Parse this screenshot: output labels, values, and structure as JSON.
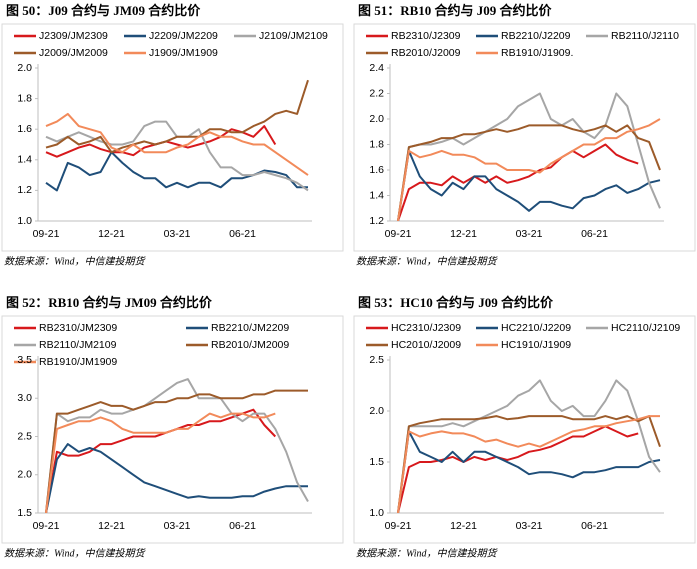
{
  "chart_data": [
    {
      "type": "line",
      "title": "图 50：J09 合约与 JM09 合约比价",
      "source": "数据来源：Wind，中信建投期货",
      "categories": [
        "09-21",
        null,
        null,
        null,
        null,
        null,
        "12-21",
        null,
        null,
        null,
        null,
        null,
        "03-21",
        null,
        null,
        null,
        null,
        null,
        "06-21",
        null,
        null,
        null,
        null,
        null,
        null
      ],
      "ylim": [
        1.0,
        2.0
      ],
      "yticks": [
        {
          "value": 1.0,
          "label": "1.0"
        },
        1.2,
        1.4,
        1.6,
        1.8,
        {
          "value": 2.0,
          "label": "2.0"
        }
      ],
      "series": [
        {
          "name": "J2309/JM2309",
          "color": "#d7191c",
          "values": [
            1.45,
            1.42,
            1.45,
            1.48,
            1.5,
            1.47,
            1.45,
            1.45,
            1.43,
            1.48,
            1.5,
            1.52,
            1.5,
            1.48,
            1.5,
            1.52,
            1.55,
            1.6,
            1.58,
            1.55,
            1.62,
            1.5,
            null,
            null,
            null
          ]
        },
        {
          "name": "J2209/JM2209",
          "color": "#1f4e79",
          "values": [
            1.25,
            1.2,
            1.38,
            1.35,
            1.3,
            1.32,
            1.45,
            1.38,
            1.32,
            1.28,
            1.28,
            1.22,
            1.25,
            1.22,
            1.25,
            1.25,
            1.22,
            1.28,
            1.28,
            1.3,
            1.33,
            1.32,
            1.3,
            1.22,
            1.22
          ]
        },
        {
          "name": "J2109/JM2109",
          "color": "#a6a6a6",
          "values": [
            1.55,
            1.52,
            1.55,
            1.58,
            1.55,
            1.52,
            1.5,
            1.5,
            1.52,
            1.62,
            1.65,
            1.65,
            1.55,
            1.55,
            1.6,
            1.45,
            1.35,
            1.35,
            1.3,
            1.3,
            1.32,
            1.3,
            1.28,
            1.25,
            1.2
          ]
        },
        {
          "name": "J2009/JM2009",
          "color": "#9c5b2a",
          "values": [
            1.48,
            1.5,
            1.55,
            1.5,
            1.52,
            1.55,
            1.45,
            1.48,
            1.5,
            1.52,
            1.5,
            1.52,
            1.55,
            1.55,
            1.55,
            1.6,
            1.6,
            1.58,
            1.58,
            1.62,
            1.65,
            1.7,
            1.72,
            1.7,
            1.92
          ]
        },
        {
          "name": "J1909/JM1909",
          "color": "#f28a5a",
          "values": [
            1.62,
            1.65,
            1.7,
            1.62,
            1.6,
            1.58,
            1.48,
            1.45,
            1.5,
            1.45,
            1.45,
            1.45,
            1.48,
            1.5,
            1.55,
            1.58,
            1.55,
            1.55,
            1.52,
            1.5,
            1.5,
            1.45,
            1.4,
            1.35,
            1.3
          ]
        }
      ]
    },
    {
      "type": "line",
      "title": "图 51：RB10 合约与 J09 合约比价",
      "source": "数据来源：Wind，中信建投期货",
      "categories": [
        "09-21",
        null,
        null,
        null,
        null,
        null,
        "12-21",
        null,
        null,
        null,
        null,
        null,
        "03-21",
        null,
        null,
        null,
        null,
        null,
        "06-21",
        null,
        null,
        null,
        null,
        null,
        null
      ],
      "ylim": [
        1.2,
        2.4
      ],
      "yticks": [
        1.2,
        1.4,
        1.6,
        1.8,
        {
          "value": 2.0,
          "label": "2.0"
        },
        2.2,
        2.4
      ],
      "series": [
        {
          "name": "RB2310/J2309",
          "color": "#d7191c",
          "values": [
            1.2,
            1.45,
            1.5,
            1.5,
            1.48,
            1.55,
            1.5,
            1.55,
            1.5,
            1.55,
            1.5,
            1.52,
            1.55,
            1.6,
            1.62,
            1.7,
            1.75,
            1.7,
            1.75,
            1.8,
            1.72,
            1.68,
            1.65,
            null,
            null
          ]
        },
        {
          "name": "RB2210/J2209",
          "color": "#1f4e79",
          "values": [
            1.2,
            1.75,
            1.55,
            1.45,
            1.4,
            1.5,
            1.45,
            1.55,
            1.55,
            1.45,
            1.4,
            1.35,
            1.28,
            1.35,
            1.35,
            1.32,
            1.3,
            1.38,
            1.4,
            1.45,
            1.48,
            1.42,
            1.45,
            1.5,
            1.52
          ]
        },
        {
          "name": "RB2110/J2110",
          "color": "#a6a6a6",
          "values": [
            1.2,
            1.78,
            1.8,
            1.8,
            1.82,
            1.85,
            1.8,
            1.85,
            1.9,
            1.95,
            2.0,
            2.1,
            2.15,
            2.2,
            2.0,
            1.95,
            2.0,
            1.9,
            1.85,
            1.95,
            2.2,
            2.1,
            1.8,
            1.5,
            1.3
          ]
        },
        {
          "name": "RB2010/J2009",
          "color": "#9c5b2a",
          "values": [
            1.2,
            1.78,
            1.8,
            1.82,
            1.85,
            1.85,
            1.88,
            1.88,
            1.9,
            1.92,
            1.9,
            1.92,
            1.95,
            1.95,
            1.95,
            1.95,
            1.92,
            1.9,
            1.92,
            1.95,
            1.9,
            1.95,
            1.85,
            1.82,
            1.6
          ]
        },
        {
          "name": "RB1910/J1909.",
          "color": "#f28a5a",
          "values": [
            1.2,
            1.75,
            1.7,
            1.72,
            1.75,
            1.72,
            1.72,
            1.7,
            1.65,
            1.65,
            1.6,
            1.6,
            1.6,
            1.58,
            1.65,
            1.7,
            1.75,
            1.8,
            1.8,
            1.85,
            1.85,
            1.9,
            1.92,
            1.95,
            2.0
          ]
        }
      ]
    },
    {
      "type": "line",
      "title": "图 52：RB10 合约与 JM09 合约比价",
      "source": "数据来源：Wind，中信建投期货",
      "categories": [
        "09-21",
        null,
        null,
        null,
        null,
        null,
        "12-21",
        null,
        null,
        null,
        null,
        null,
        "03-21",
        null,
        null,
        null,
        null,
        null,
        "06-21",
        null,
        null,
        null,
        null,
        null,
        null
      ],
      "ylim": [
        1.5,
        3.5
      ],
      "yticks": [
        1.5,
        {
          "value": 2.0,
          "label": "2.0"
        },
        2.5,
        {
          "value": 3.0,
          "label": "3.0"
        },
        3.5
      ],
      "series": [
        {
          "name": "RB2310/JM2309",
          "color": "#d7191c",
          "values": [
            1.5,
            2.3,
            2.25,
            2.25,
            2.3,
            2.4,
            2.4,
            2.45,
            2.5,
            2.5,
            2.5,
            2.55,
            2.6,
            2.65,
            2.65,
            2.7,
            2.7,
            2.75,
            2.8,
            2.85,
            2.65,
            2.5,
            null,
            null,
            null
          ]
        },
        {
          "name": "RB2210/JM2209",
          "color": "#1f4e79",
          "values": [
            1.5,
            2.2,
            2.4,
            2.3,
            2.35,
            2.3,
            2.2,
            2.1,
            2.0,
            1.9,
            1.85,
            1.8,
            1.75,
            1.7,
            1.72,
            1.7,
            1.7,
            1.7,
            1.72,
            1.72,
            1.78,
            1.82,
            1.85,
            1.85,
            1.85
          ]
        },
        {
          "name": "RB2110/JM2109",
          "color": "#a6a6a6",
          "values": [
            1.5,
            2.8,
            2.7,
            2.75,
            2.75,
            2.85,
            2.8,
            2.8,
            2.85,
            2.9,
            3.0,
            3.1,
            3.2,
            3.25,
            3.0,
            3.0,
            3.0,
            2.8,
            2.7,
            2.8,
            2.8,
            2.6,
            2.3,
            1.9,
            1.65
          ]
        },
        {
          "name": "RB2010/JM2009",
          "color": "#9c5b2a",
          "values": [
            1.5,
            2.8,
            2.8,
            2.85,
            2.9,
            2.95,
            2.9,
            2.9,
            2.85,
            2.9,
            2.95,
            2.95,
            3.0,
            3.0,
            3.05,
            3.05,
            3.0,
            3.0,
            3.0,
            3.05,
            3.05,
            3.1,
            3.1,
            3.1,
            3.1
          ]
        },
        {
          "name": "RB1910/JM1909",
          "color": "#f28a5a",
          "values": [
            1.5,
            2.6,
            2.65,
            2.7,
            2.7,
            2.75,
            2.7,
            2.6,
            2.55,
            2.55,
            2.55,
            2.55,
            2.6,
            2.6,
            2.7,
            2.8,
            2.75,
            2.8,
            2.8,
            2.75,
            2.75,
            2.8,
            null,
            null,
            null
          ]
        }
      ]
    },
    {
      "type": "line",
      "title": "图 53：HC10 合约与 J09 合约比价",
      "source": "数据来源：Wind，中信建投期货",
      "categories": [
        "09-21",
        null,
        null,
        null,
        null,
        null,
        "12-21",
        null,
        null,
        null,
        null,
        null,
        "03-21",
        null,
        null,
        null,
        null,
        null,
        "06-21",
        null,
        null,
        null,
        null,
        null,
        null
      ],
      "ylim": [
        1.0,
        2.5
      ],
      "yticks": [
        {
          "value": 1.0,
          "label": "1.0"
        },
        1.5,
        {
          "value": 2.0,
          "label": "2.0"
        },
        2.5
      ],
      "series": [
        {
          "name": "HC2310/J2309",
          "color": "#d7191c",
          "values": [
            1.0,
            1.45,
            1.5,
            1.5,
            1.52,
            1.55,
            1.5,
            1.55,
            1.52,
            1.55,
            1.52,
            1.55,
            1.6,
            1.62,
            1.65,
            1.7,
            1.75,
            1.75,
            1.8,
            1.85,
            1.8,
            1.75,
            1.78,
            null,
            null
          ]
        },
        {
          "name": "HC2210/J2209",
          "color": "#1f4e79",
          "values": [
            1.0,
            1.8,
            1.6,
            1.55,
            1.5,
            1.6,
            1.5,
            1.6,
            1.6,
            1.55,
            1.5,
            1.45,
            1.38,
            1.4,
            1.4,
            1.38,
            1.35,
            1.4,
            1.4,
            1.42,
            1.45,
            1.45,
            1.45,
            1.5,
            1.52
          ]
        },
        {
          "name": "HC2110/J2109",
          "color": "#a6a6a6",
          "values": [
            1.0,
            1.85,
            1.85,
            1.85,
            1.85,
            1.88,
            1.85,
            1.9,
            1.95,
            2.0,
            2.05,
            2.15,
            2.2,
            2.3,
            2.1,
            2.0,
            2.05,
            1.95,
            1.95,
            2.1,
            2.3,
            2.2,
            1.9,
            1.55,
            1.4
          ]
        },
        {
          "name": "HC2010/J2009",
          "color": "#9c5b2a",
          "values": [
            1.0,
            1.85,
            1.88,
            1.9,
            1.92,
            1.92,
            1.92,
            1.92,
            1.93,
            1.95,
            1.92,
            1.93,
            1.95,
            1.95,
            1.95,
            1.95,
            1.92,
            1.92,
            1.92,
            1.95,
            1.92,
            1.95,
            1.9,
            1.95,
            1.65
          ]
        },
        {
          "name": "HC1910/J1909",
          "color": "#f28a5a",
          "values": [
            1.0,
            1.8,
            1.75,
            1.78,
            1.8,
            1.78,
            1.78,
            1.75,
            1.7,
            1.72,
            1.68,
            1.65,
            1.68,
            1.65,
            1.7,
            1.75,
            1.8,
            1.82,
            1.85,
            1.85,
            1.88,
            1.9,
            1.92,
            1.95,
            1.95
          ]
        }
      ]
    }
  ]
}
